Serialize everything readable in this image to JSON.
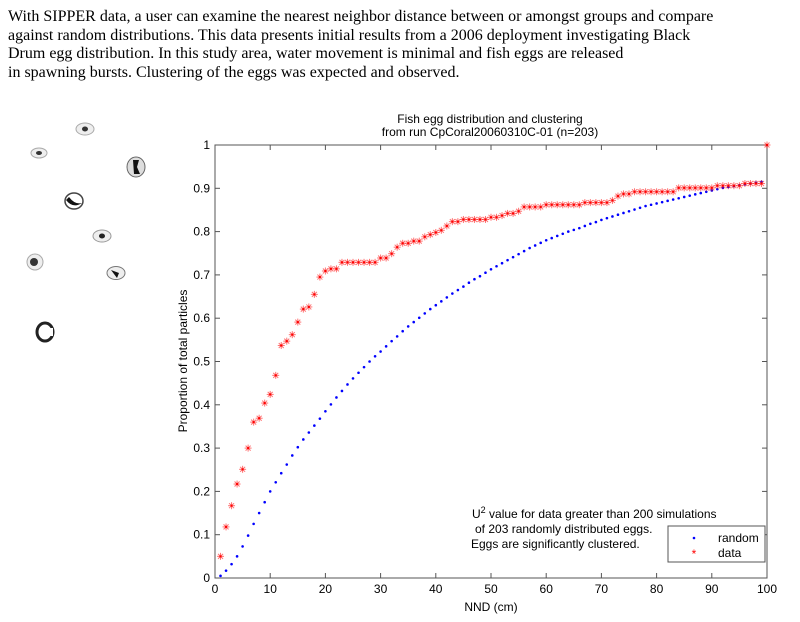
{
  "intro_lines": [
    "With SIPPER data, a user can examine the nearest neighbor distance between or amongst groups and compare",
    "against random distributions. This data presents initial results from a 2006 deployment investigating Black",
    "Drum egg distribution. In this study area, water movement is minimal and fish eggs are released",
    "in spawning bursts. Clustering of the eggs was expected and observed."
  ],
  "colors": {
    "data": "#ff0000",
    "random": "#0000ff",
    "axis": "#555555"
  },
  "chart_data": {
    "type": "scatter",
    "title": [
      "Fish egg distribution and clustering",
      "from run CpCoral20060310C-01 (n=203)"
    ],
    "xlabel": "NND (cm)",
    "ylabel": "Proportion of total particles",
    "xlim": [
      0,
      100
    ],
    "ylim": [
      0,
      1
    ],
    "xticks": [
      "0",
      "10",
      "20",
      "30",
      "40",
      "50",
      "60",
      "70",
      "80",
      "90",
      "100"
    ],
    "yticks": [
      "0",
      "0.1",
      "0.2",
      "0.3",
      "0.4",
      "0.5",
      "0.6",
      "0.7",
      "0.8",
      "0.9",
      "1"
    ],
    "grid": false,
    "legend": {
      "placement": "bottom-right",
      "entries": [
        "random",
        "data"
      ]
    },
    "annotation": {
      "line1_prefix": "U",
      "line1_sup": "2",
      "line1_rest": " value for data greater than 200 simulations",
      "line2": "of 203 randomly distributed eggs.",
      "line3": "Eggs are significantly clustered."
    },
    "series": [
      {
        "name": "random",
        "marker": "dot",
        "x": [
          1,
          2,
          3,
          4,
          5,
          6,
          7,
          8,
          9,
          10,
          11,
          12,
          13,
          14,
          15,
          16,
          17,
          18,
          19,
          20,
          21,
          22,
          23,
          24,
          25,
          26,
          27,
          28,
          29,
          30,
          31,
          32,
          33,
          34,
          35,
          36,
          37,
          38,
          39,
          40,
          41,
          42,
          43,
          44,
          45,
          46,
          47,
          48,
          49,
          50,
          51,
          52,
          53,
          54,
          55,
          56,
          57,
          58,
          59,
          60,
          61,
          62,
          63,
          64,
          65,
          66,
          67,
          68,
          69,
          70,
          71,
          72,
          73,
          74,
          75,
          76,
          77,
          78,
          79,
          80,
          81,
          82,
          83,
          84,
          85,
          86,
          87,
          88,
          89,
          90,
          91,
          92,
          93,
          94,
          95,
          96,
          97,
          98,
          99
        ],
        "y": [
          0.005,
          0.017,
          0.032,
          0.05,
          0.073,
          0.098,
          0.125,
          0.15,
          0.175,
          0.2,
          0.221,
          0.242,
          0.262,
          0.283,
          0.302,
          0.32,
          0.336,
          0.352,
          0.368,
          0.385,
          0.401,
          0.417,
          0.432,
          0.447,
          0.461,
          0.474,
          0.487,
          0.5,
          0.512,
          0.523,
          0.535,
          0.547,
          0.558,
          0.57,
          0.581,
          0.591,
          0.601,
          0.611,
          0.621,
          0.63,
          0.639,
          0.648,
          0.657,
          0.665,
          0.673,
          0.682,
          0.69,
          0.697,
          0.705,
          0.713,
          0.72,
          0.727,
          0.734,
          0.741,
          0.748,
          0.755,
          0.762,
          0.768,
          0.774,
          0.78,
          0.785,
          0.79,
          0.795,
          0.8,
          0.804,
          0.808,
          0.813,
          0.818,
          0.822,
          0.827,
          0.831,
          0.835,
          0.839,
          0.843,
          0.847,
          0.851,
          0.855,
          0.859,
          0.862,
          0.865,
          0.868,
          0.871,
          0.874,
          0.877,
          0.88,
          0.883,
          0.886,
          0.889,
          0.892,
          0.895,
          0.898,
          0.901,
          0.903,
          0.905,
          0.907,
          0.909,
          0.911,
          0.913,
          0.915
        ]
      },
      {
        "name": "data",
        "marker": "asterisk",
        "x": [
          1,
          2,
          3,
          4,
          5,
          6,
          7,
          8,
          9,
          10,
          11,
          12,
          13,
          14,
          15,
          16,
          17,
          18,
          19,
          20,
          21,
          22,
          23,
          24,
          25,
          26,
          27,
          28,
          29,
          30,
          31,
          32,
          33,
          34,
          35,
          36,
          37,
          38,
          39,
          40,
          41,
          42,
          43,
          44,
          45,
          46,
          47,
          48,
          49,
          50,
          51,
          52,
          53,
          54,
          55,
          56,
          57,
          58,
          59,
          60,
          61,
          62,
          63,
          64,
          65,
          66,
          67,
          68,
          69,
          70,
          71,
          72,
          73,
          74,
          75,
          76,
          77,
          78,
          79,
          80,
          81,
          82,
          83,
          84,
          85,
          86,
          87,
          88,
          89,
          90,
          91,
          92,
          93,
          94,
          95,
          96,
          97,
          98,
          99,
          100
        ],
        "y": [
          0.05,
          0.118,
          0.167,
          0.217,
          0.251,
          0.3,
          0.36,
          0.369,
          0.404,
          0.424,
          0.468,
          0.537,
          0.547,
          0.562,
          0.591,
          0.621,
          0.626,
          0.655,
          0.695,
          0.709,
          0.714,
          0.714,
          0.729,
          0.729,
          0.729,
          0.729,
          0.729,
          0.729,
          0.729,
          0.739,
          0.739,
          0.749,
          0.764,
          0.773,
          0.773,
          0.778,
          0.778,
          0.788,
          0.793,
          0.798,
          0.803,
          0.813,
          0.823,
          0.823,
          0.828,
          0.828,
          0.828,
          0.828,
          0.828,
          0.833,
          0.833,
          0.837,
          0.842,
          0.842,
          0.847,
          0.857,
          0.857,
          0.857,
          0.857,
          0.862,
          0.862,
          0.862,
          0.862,
          0.862,
          0.862,
          0.862,
          0.867,
          0.867,
          0.867,
          0.867,
          0.867,
          0.872,
          0.882,
          0.887,
          0.887,
          0.892,
          0.892,
          0.892,
          0.892,
          0.892,
          0.892,
          0.892,
          0.892,
          0.901,
          0.901,
          0.901,
          0.901,
          0.901,
          0.901,
          0.901,
          0.906,
          0.906,
          0.906,
          0.906,
          0.906,
          0.911,
          0.911,
          0.911,
          0.911,
          1.0
        ]
      }
    ]
  }
}
